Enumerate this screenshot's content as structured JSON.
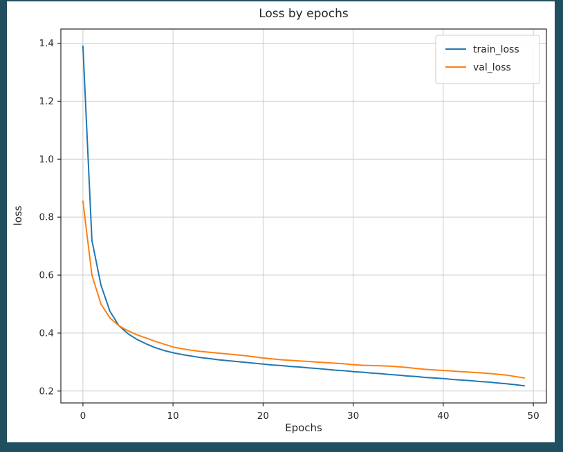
{
  "window": {
    "frame_color": "#20505f",
    "figure_background": "#ffffff"
  },
  "chart_data": {
    "type": "line",
    "title": "Loss by epochs",
    "xlabel": "Epochs",
    "ylabel": "loss",
    "grid": true,
    "legend_position": "upper right",
    "xlim": [
      -2.45,
      51.45
    ],
    "ylim": [
      0.159,
      1.449
    ],
    "xticks": [
      0,
      10,
      20,
      30,
      40,
      50
    ],
    "yticks": [
      0.2,
      0.4,
      0.6,
      0.8,
      1.0,
      1.2,
      1.4
    ],
    "colors": {
      "grid": "#cccccc",
      "spine": "#262626",
      "legend_border": "#cccccc",
      "legend_background": "#ffffff"
    },
    "x": [
      0,
      1,
      2,
      3,
      4,
      5,
      6,
      7,
      8,
      9,
      10,
      11,
      12,
      13,
      14,
      15,
      16,
      17,
      18,
      19,
      20,
      21,
      22,
      23,
      24,
      25,
      26,
      27,
      28,
      29,
      30,
      31,
      32,
      33,
      34,
      35,
      36,
      37,
      38,
      39,
      40,
      41,
      42,
      43,
      44,
      45,
      46,
      47,
      48,
      49
    ],
    "series": [
      {
        "name": "train_loss",
        "color": "#1f77b4",
        "values": [
          1.39,
          0.72,
          0.565,
          0.475,
          0.425,
          0.398,
          0.378,
          0.363,
          0.35,
          0.34,
          0.332,
          0.326,
          0.321,
          0.316,
          0.312,
          0.308,
          0.305,
          0.302,
          0.299,
          0.296,
          0.293,
          0.29,
          0.288,
          0.285,
          0.283,
          0.28,
          0.278,
          0.275,
          0.272,
          0.27,
          0.267,
          0.265,
          0.262,
          0.26,
          0.257,
          0.255,
          0.252,
          0.25,
          0.247,
          0.245,
          0.243,
          0.24,
          0.238,
          0.236,
          0.233,
          0.231,
          0.228,
          0.225,
          0.222,
          0.218
        ]
      },
      {
        "name": "val_loss",
        "color": "#ff7f0e",
        "values": [
          0.855,
          0.6,
          0.5,
          0.452,
          0.425,
          0.408,
          0.394,
          0.383,
          0.372,
          0.362,
          0.352,
          0.346,
          0.341,
          0.337,
          0.334,
          0.331,
          0.328,
          0.325,
          0.322,
          0.318,
          0.314,
          0.311,
          0.308,
          0.306,
          0.304,
          0.302,
          0.3,
          0.298,
          0.296,
          0.294,
          0.291,
          0.289,
          0.288,
          0.287,
          0.286,
          0.284,
          0.281,
          0.278,
          0.275,
          0.273,
          0.271,
          0.269,
          0.267,
          0.265,
          0.263,
          0.261,
          0.258,
          0.255,
          0.25,
          0.245
        ]
      }
    ]
  }
}
